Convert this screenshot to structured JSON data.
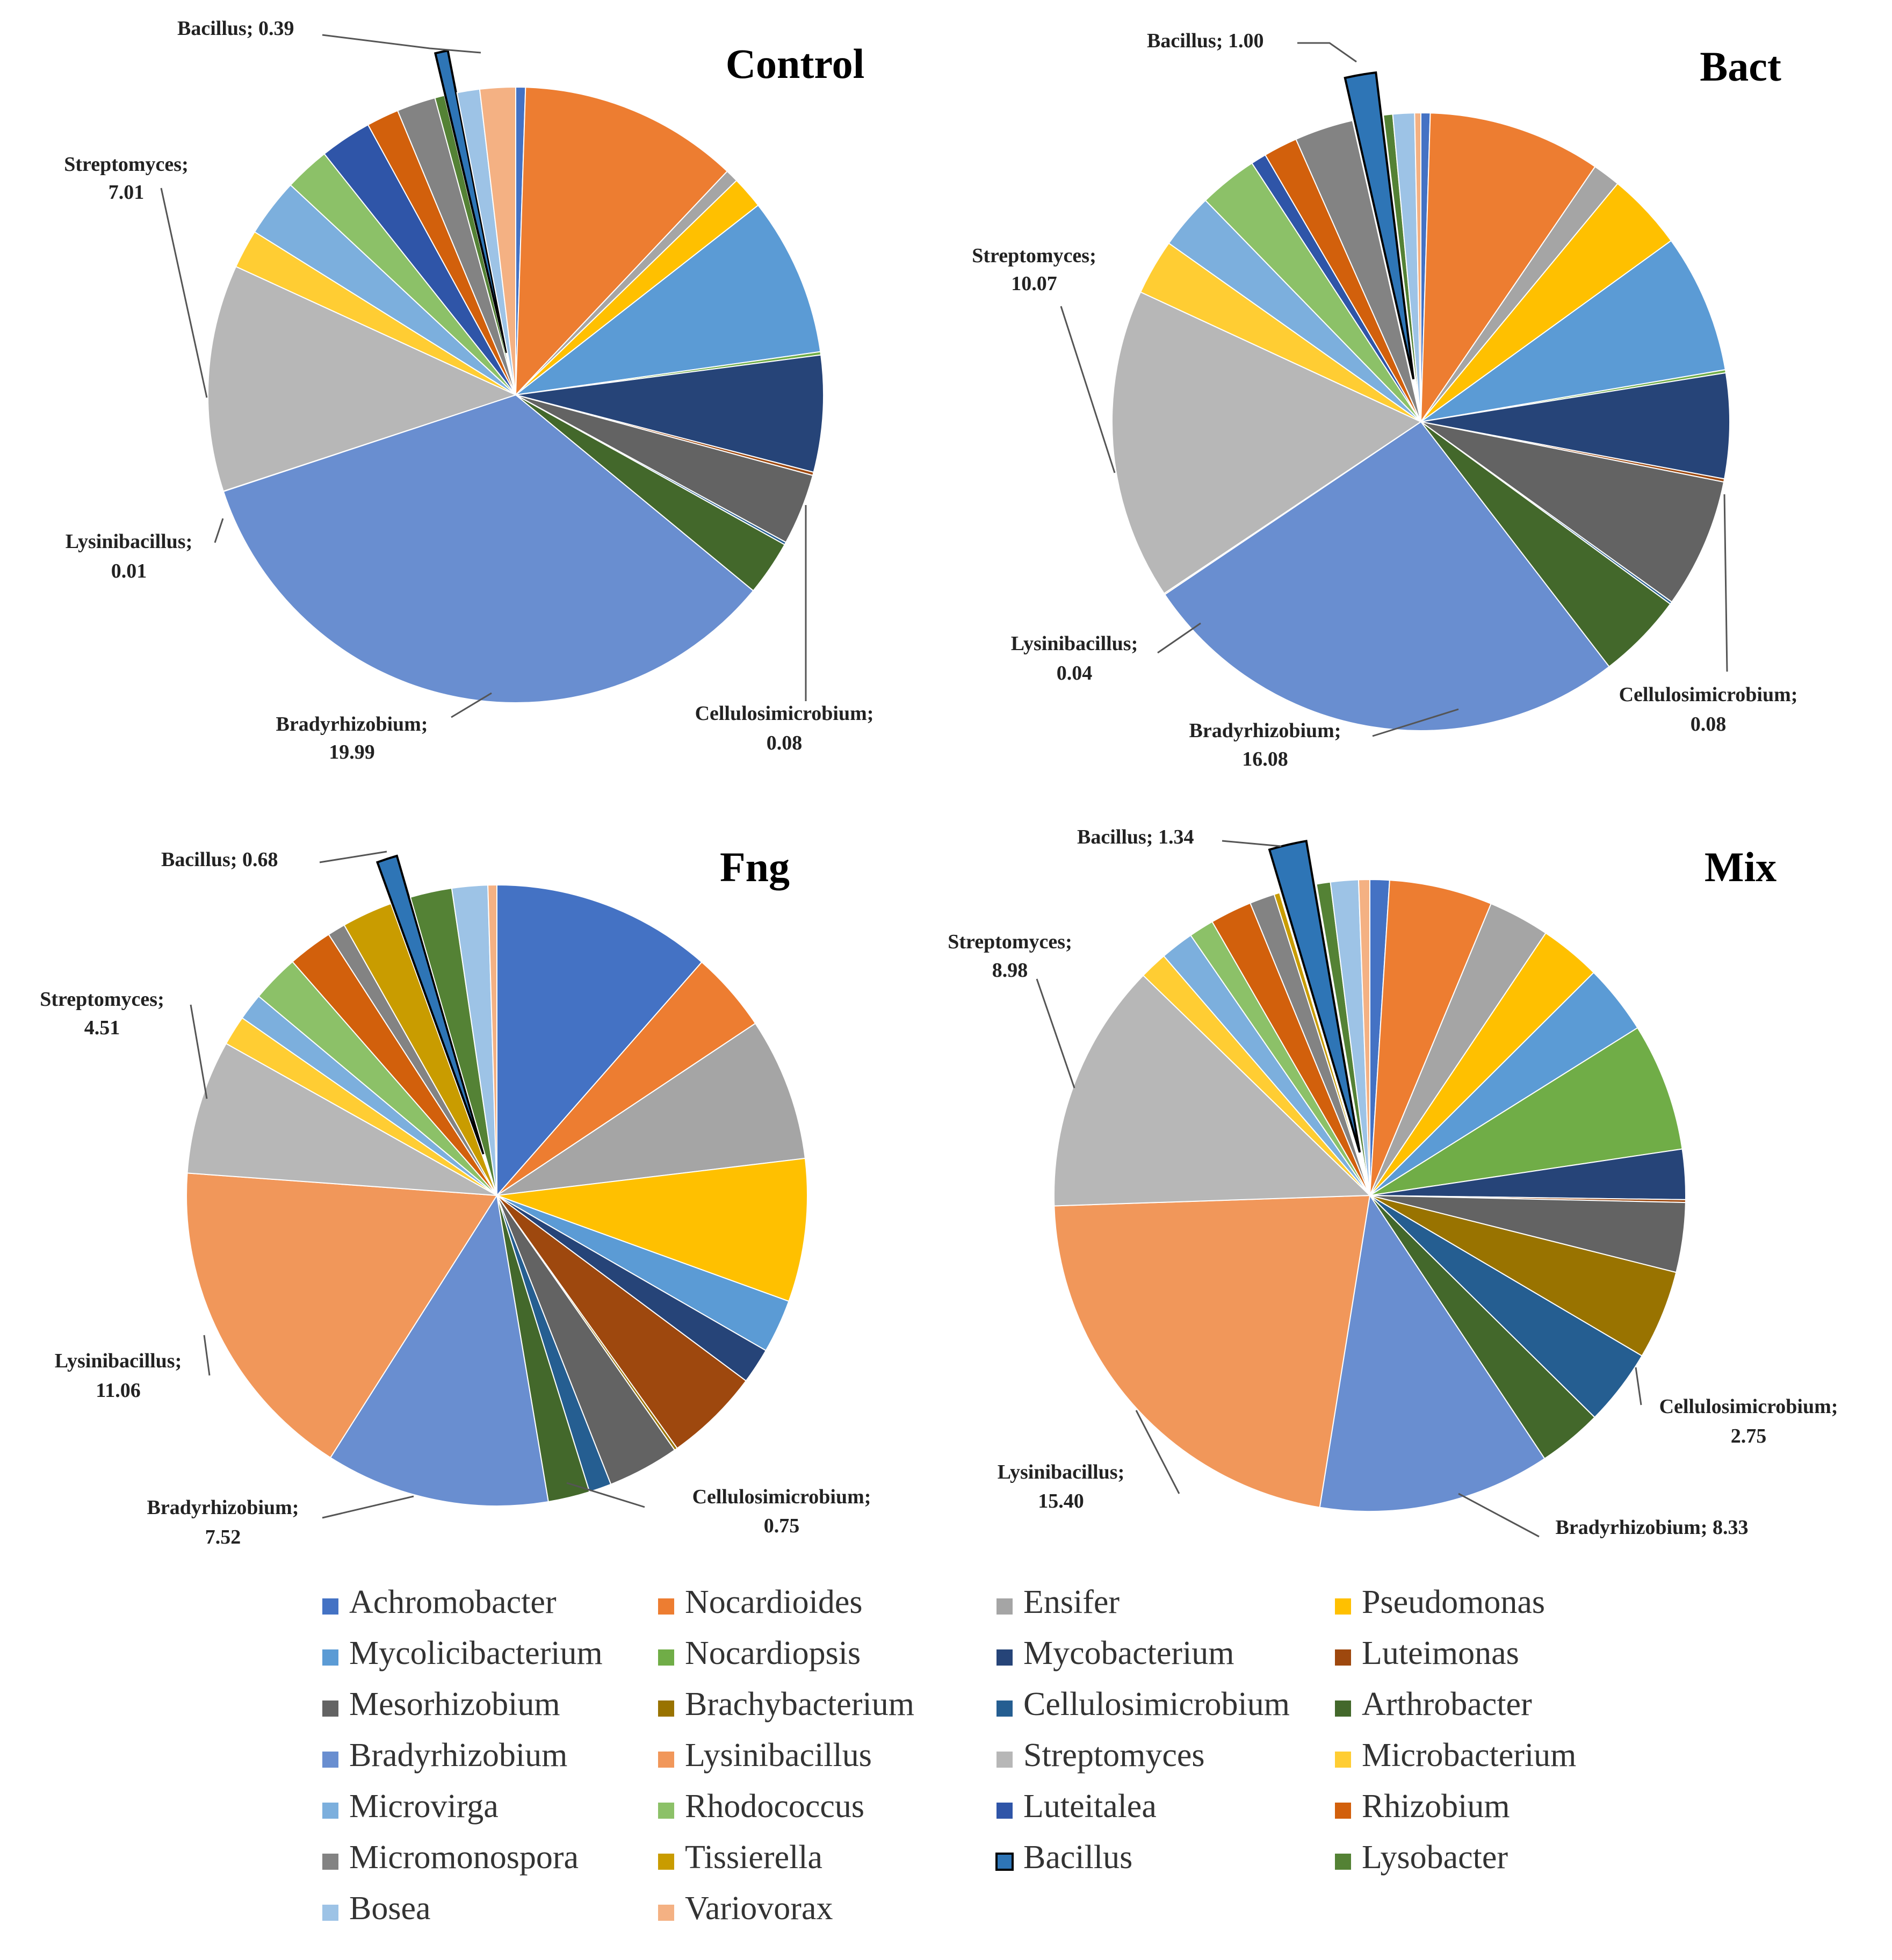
{
  "chart_data": [
    {
      "type": "pie",
      "title": "Control",
      "slices": [
        {
          "label": "Achromobacter",
          "value": 0.3
        },
        {
          "label": "Nocardioides",
          "value": 6.8
        },
        {
          "label": "Ensifer",
          "value": 0.4
        },
        {
          "label": "Pseudomonas",
          "value": 1.0
        },
        {
          "label": "Mycolicibacterium",
          "value": 4.9
        },
        {
          "label": "Nocardiopsis",
          "value": 0.1
        },
        {
          "label": "Mycobacterium",
          "value": 3.6
        },
        {
          "label": "Luteimonas",
          "value": 0.1
        },
        {
          "label": "Mesorhizobium",
          "value": 2.2
        },
        {
          "label": "Cellulosimicrobium",
          "value": 0.08
        },
        {
          "label": "Arthrobacter",
          "value": 1.7
        },
        {
          "label": "Bradyrhizobium",
          "value": 19.99
        },
        {
          "label": "Lysinibacillus",
          "value": 0.01
        },
        {
          "label": "Streptomyces",
          "value": 7.01
        },
        {
          "label": "Microbacterium",
          "value": 1.2
        },
        {
          "label": "Microvirga",
          "value": 1.8
        },
        {
          "label": "Rhodococcus",
          "value": 1.4
        },
        {
          "label": "Luteitalea",
          "value": 1.6
        },
        {
          "label": "Rhizobium",
          "value": 1.0
        },
        {
          "label": "Micromonospora",
          "value": 1.2
        },
        {
          "label": "Lysobacter",
          "value": 0.3
        },
        {
          "label": "Bacillus",
          "value": 0.39
        },
        {
          "label": "Bosea",
          "value": 0.7
        },
        {
          "label": "Variovorax",
          "value": 1.1
        }
      ],
      "labels": [
        {
          "genus": "Bacillus",
          "value": "0.39",
          "l1": "Bacillus; 0.39",
          "l2": ""
        },
        {
          "genus": "Streptomyces",
          "value": "7.01",
          "l1": "Streptomyces;",
          "l2": "7.01"
        },
        {
          "genus": "Lysinibacillus",
          "value": "0.01",
          "l1": "Lysinibacillus;",
          "l2": "0.01"
        },
        {
          "genus": "Bradyrhizobium",
          "value": "19.99",
          "l1": "Bradyrhizobium;",
          "l2": "19.99"
        },
        {
          "genus": "Cellulosimicrobium",
          "value": "0.08",
          "l1": "Cellulosimicrobium;",
          "l2": "0.08"
        }
      ]
    },
    {
      "type": "pie",
      "title": "Bact",
      "slices": [
        {
          "label": "Achromobacter",
          "value": 0.3
        },
        {
          "label": "Nocardioides",
          "value": 5.6
        },
        {
          "label": "Ensifer",
          "value": 0.9
        },
        {
          "label": "Pseudomonas",
          "value": 2.5
        },
        {
          "label": "Mycolicibacterium",
          "value": 4.5
        },
        {
          "label": "Nocardiopsis",
          "value": 0.1
        },
        {
          "label": "Mycobacterium",
          "value": 3.4
        },
        {
          "label": "Luteimonas",
          "value": 0.1
        },
        {
          "label": "Mesorhizobium",
          "value": 4.2
        },
        {
          "label": "Cellulosimicrobium",
          "value": 0.08
        },
        {
          "label": "Arthrobacter",
          "value": 2.8
        },
        {
          "label": "Bradyrhizobium",
          "value": 16.08
        },
        {
          "label": "Lysinibacillus",
          "value": 0.04
        },
        {
          "label": "Streptomyces",
          "value": 10.07
        },
        {
          "label": "Microbacterium",
          "value": 1.8
        },
        {
          "label": "Microvirga",
          "value": 1.8
        },
        {
          "label": "Rhodococcus",
          "value": 1.9
        },
        {
          "label": "Luteitalea",
          "value": 0.5
        },
        {
          "label": "Rhizobium",
          "value": 1.1
        },
        {
          "label": "Micromonospora",
          "value": 1.9
        },
        {
          "label": "Bacillus",
          "value": 1.0
        },
        {
          "label": "Lysobacter",
          "value": 0.3
        },
        {
          "label": "Bosea",
          "value": 0.7
        },
        {
          "label": "Variovorax",
          "value": 0.2
        }
      ],
      "labels": [
        {
          "genus": "Bacillus",
          "value": "1.00",
          "l1": "Bacillus; 1.00",
          "l2": ""
        },
        {
          "genus": "Streptomyces",
          "value": "10.07",
          "l1": "Streptomyces;",
          "l2": "10.07"
        },
        {
          "genus": "Lysinibacillus",
          "value": "0.04",
          "l1": "Lysinibacillus;",
          "l2": "0.04"
        },
        {
          "genus": "Bradyrhizobium",
          "value": "16.08",
          "l1": "Bradyrhizobium;",
          "l2": "16.08"
        },
        {
          "genus": "Cellulosimicrobium",
          "value": "0.08",
          "l1": "Cellulosimicrobium;",
          "l2": "0.08"
        }
      ]
    },
    {
      "type": "pie",
      "title": "Fng",
      "slices": [
        {
          "label": "Achromobacter",
          "value": 7.4
        },
        {
          "label": "Nocardioides",
          "value": 2.7
        },
        {
          "label": "Ensifer",
          "value": 4.8
        },
        {
          "label": "Pseudomonas",
          "value": 4.8
        },
        {
          "label": "Mycolicibacterium",
          "value": 1.8
        },
        {
          "label": "Mycobacterium",
          "value": 1.2
        },
        {
          "label": "Luteimonas",
          "value": 3.2
        },
        {
          "label": "Brachybacterium",
          "value": 0.1
        },
        {
          "label": "Mesorhizobium",
          "value": 2.4
        },
        {
          "label": "Cellulosimicrobium",
          "value": 0.75
        },
        {
          "label": "Arthrobacter",
          "value": 1.4
        },
        {
          "label": "Bradyrhizobium",
          "value": 7.52
        },
        {
          "label": "Lysinibacillus",
          "value": 11.06
        },
        {
          "label": "Streptomyces",
          "value": 4.51
        },
        {
          "label": "Microbacterium",
          "value": 1.0
        },
        {
          "label": "Microvirga",
          "value": 0.9
        },
        {
          "label": "Rhodococcus",
          "value": 1.6
        },
        {
          "label": "Rhizobium",
          "value": 1.5
        },
        {
          "label": "Micromonospora",
          "value": 0.6
        },
        {
          "label": "Tissierella",
          "value": 1.7
        },
        {
          "label": "Bacillus",
          "value": 0.68
        },
        {
          "label": "Lysobacter",
          "value": 1.4
        },
        {
          "label": "Bosea",
          "value": 1.2
        },
        {
          "label": "Variovorax",
          "value": 0.3
        }
      ],
      "labels": [
        {
          "genus": "Bacillus",
          "value": "0.68",
          "l1": "Bacillus; 0.68",
          "l2": ""
        },
        {
          "genus": "Streptomyces",
          "value": "4.51",
          "l1": "Streptomyces;",
          "l2": "4.51"
        },
        {
          "genus": "Lysinibacillus",
          "value": "11.06",
          "l1": "Lysinibacillus;",
          "l2": "11.06"
        },
        {
          "genus": "Bradyrhizobium",
          "value": "7.52",
          "l1": "Bradyrhizobium;",
          "l2": "7.52"
        },
        {
          "genus": "Cellulosimicrobium",
          "value": "0.75",
          "l1": "Cellulosimicrobium;",
          "l2": "0.75"
        }
      ]
    },
    {
      "type": "pie",
      "title": "Mix",
      "slices": [
        {
          "label": "Achromobacter",
          "value": 0.7
        },
        {
          "label": "Nocardioides",
          "value": 3.7
        },
        {
          "label": "Ensifer",
          "value": 2.2
        },
        {
          "label": "Pseudomonas",
          "value": 2.2
        },
        {
          "label": "Mycolicibacterium",
          "value": 2.5
        },
        {
          "label": "Nocardiopsis",
          "value": 4.6
        },
        {
          "label": "Mycobacterium",
          "value": 1.8
        },
        {
          "label": "Luteimonas",
          "value": 0.1
        },
        {
          "label": "Mesorhizobium",
          "value": 2.5
        },
        {
          "label": "Brachybacterium",
          "value": 3.2
        },
        {
          "label": "Cellulosimicrobium",
          "value": 2.75
        },
        {
          "label": "Arthrobacter",
          "value": 2.3
        },
        {
          "label": "Bradyrhizobium",
          "value": 8.33
        },
        {
          "label": "Lysinibacillus",
          "value": 15.4
        },
        {
          "label": "Streptomyces",
          "value": 8.98
        },
        {
          "label": "Microbacterium",
          "value": 1.0
        },
        {
          "label": "Microvirga",
          "value": 1.2
        },
        {
          "label": "Rhodococcus",
          "value": 0.9
        },
        {
          "label": "Rhizobium",
          "value": 1.5
        },
        {
          "label": "Micromonospora",
          "value": 0.9
        },
        {
          "label": "Tissierella",
          "value": 0.2
        },
        {
          "label": "Bacillus",
          "value": 1.34
        },
        {
          "label": "Lysobacter",
          "value": 0.5
        },
        {
          "label": "Bosea",
          "value": 1.0
        },
        {
          "label": "Variovorax",
          "value": 0.4
        }
      ],
      "labels": [
        {
          "genus": "Bacillus",
          "value": "1.34",
          "l1": "Bacillus; 1.34",
          "l2": ""
        },
        {
          "genus": "Streptomyces",
          "value": "8.98",
          "l1": "Streptomyces;",
          "l2": "8.98"
        },
        {
          "genus": "Lysinibacillus",
          "value": "15.40",
          "l1": "Lysinibacillus;",
          "l2": "15.40"
        },
        {
          "genus": "Bradyrhizobium",
          "value": "8.33",
          "l1": "Bradyrhizobium; 8.33",
          "l2": ""
        },
        {
          "genus": "Cellulosimicrobium",
          "value": "2.75",
          "l1": "Cellulosimicrobium;",
          "l2": "2.75"
        }
      ]
    }
  ],
  "legend": [
    {
      "label": "Achromobacter",
      "color": "#4472c4"
    },
    {
      "label": "Nocardioides",
      "color": "#ed7d31"
    },
    {
      "label": "Ensifer",
      "color": "#a5a5a5"
    },
    {
      "label": "Pseudomonas",
      "color": "#ffc000"
    },
    {
      "label": "Mycolicibacterium",
      "color": "#5b9bd5"
    },
    {
      "label": "Nocardiopsis",
      "color": "#70ad47"
    },
    {
      "label": "Mycobacterium",
      "color": "#264478"
    },
    {
      "label": "Luteimonas",
      "color": "#9e480e"
    },
    {
      "label": "Mesorhizobium",
      "color": "#636363"
    },
    {
      "label": "Brachybacterium",
      "color": "#997300"
    },
    {
      "label": "Cellulosimicrobium",
      "color": "#255e91"
    },
    {
      "label": "Arthrobacter",
      "color": "#43682b"
    },
    {
      "label": "Bradyrhizobium",
      "color": "#698ed0"
    },
    {
      "label": "Lysinibacillus",
      "color": "#f1975a"
    },
    {
      "label": "Streptomyces",
      "color": "#b7b7b7"
    },
    {
      "label": "Microbacterium",
      "color": "#ffcd33"
    },
    {
      "label": "Microvirga",
      "color": "#7cafdd"
    },
    {
      "label": "Rhodococcus",
      "color": "#8cc168"
    },
    {
      "label": "Luteitalea",
      "color": "#2f55a8"
    },
    {
      "label": "Rhizobium",
      "color": "#d2600c"
    },
    {
      "label": "Micromonospora",
      "color": "#838383"
    },
    {
      "label": "Tissierella",
      "color": "#c99c00"
    },
    {
      "label": "Bacillus",
      "color": "#2e75b6"
    },
    {
      "label": "Lysobacter",
      "color": "#548235"
    },
    {
      "label": "Bosea",
      "color": "#9dc3e6"
    },
    {
      "label": "Variovorax",
      "color": "#f4b183"
    }
  ]
}
